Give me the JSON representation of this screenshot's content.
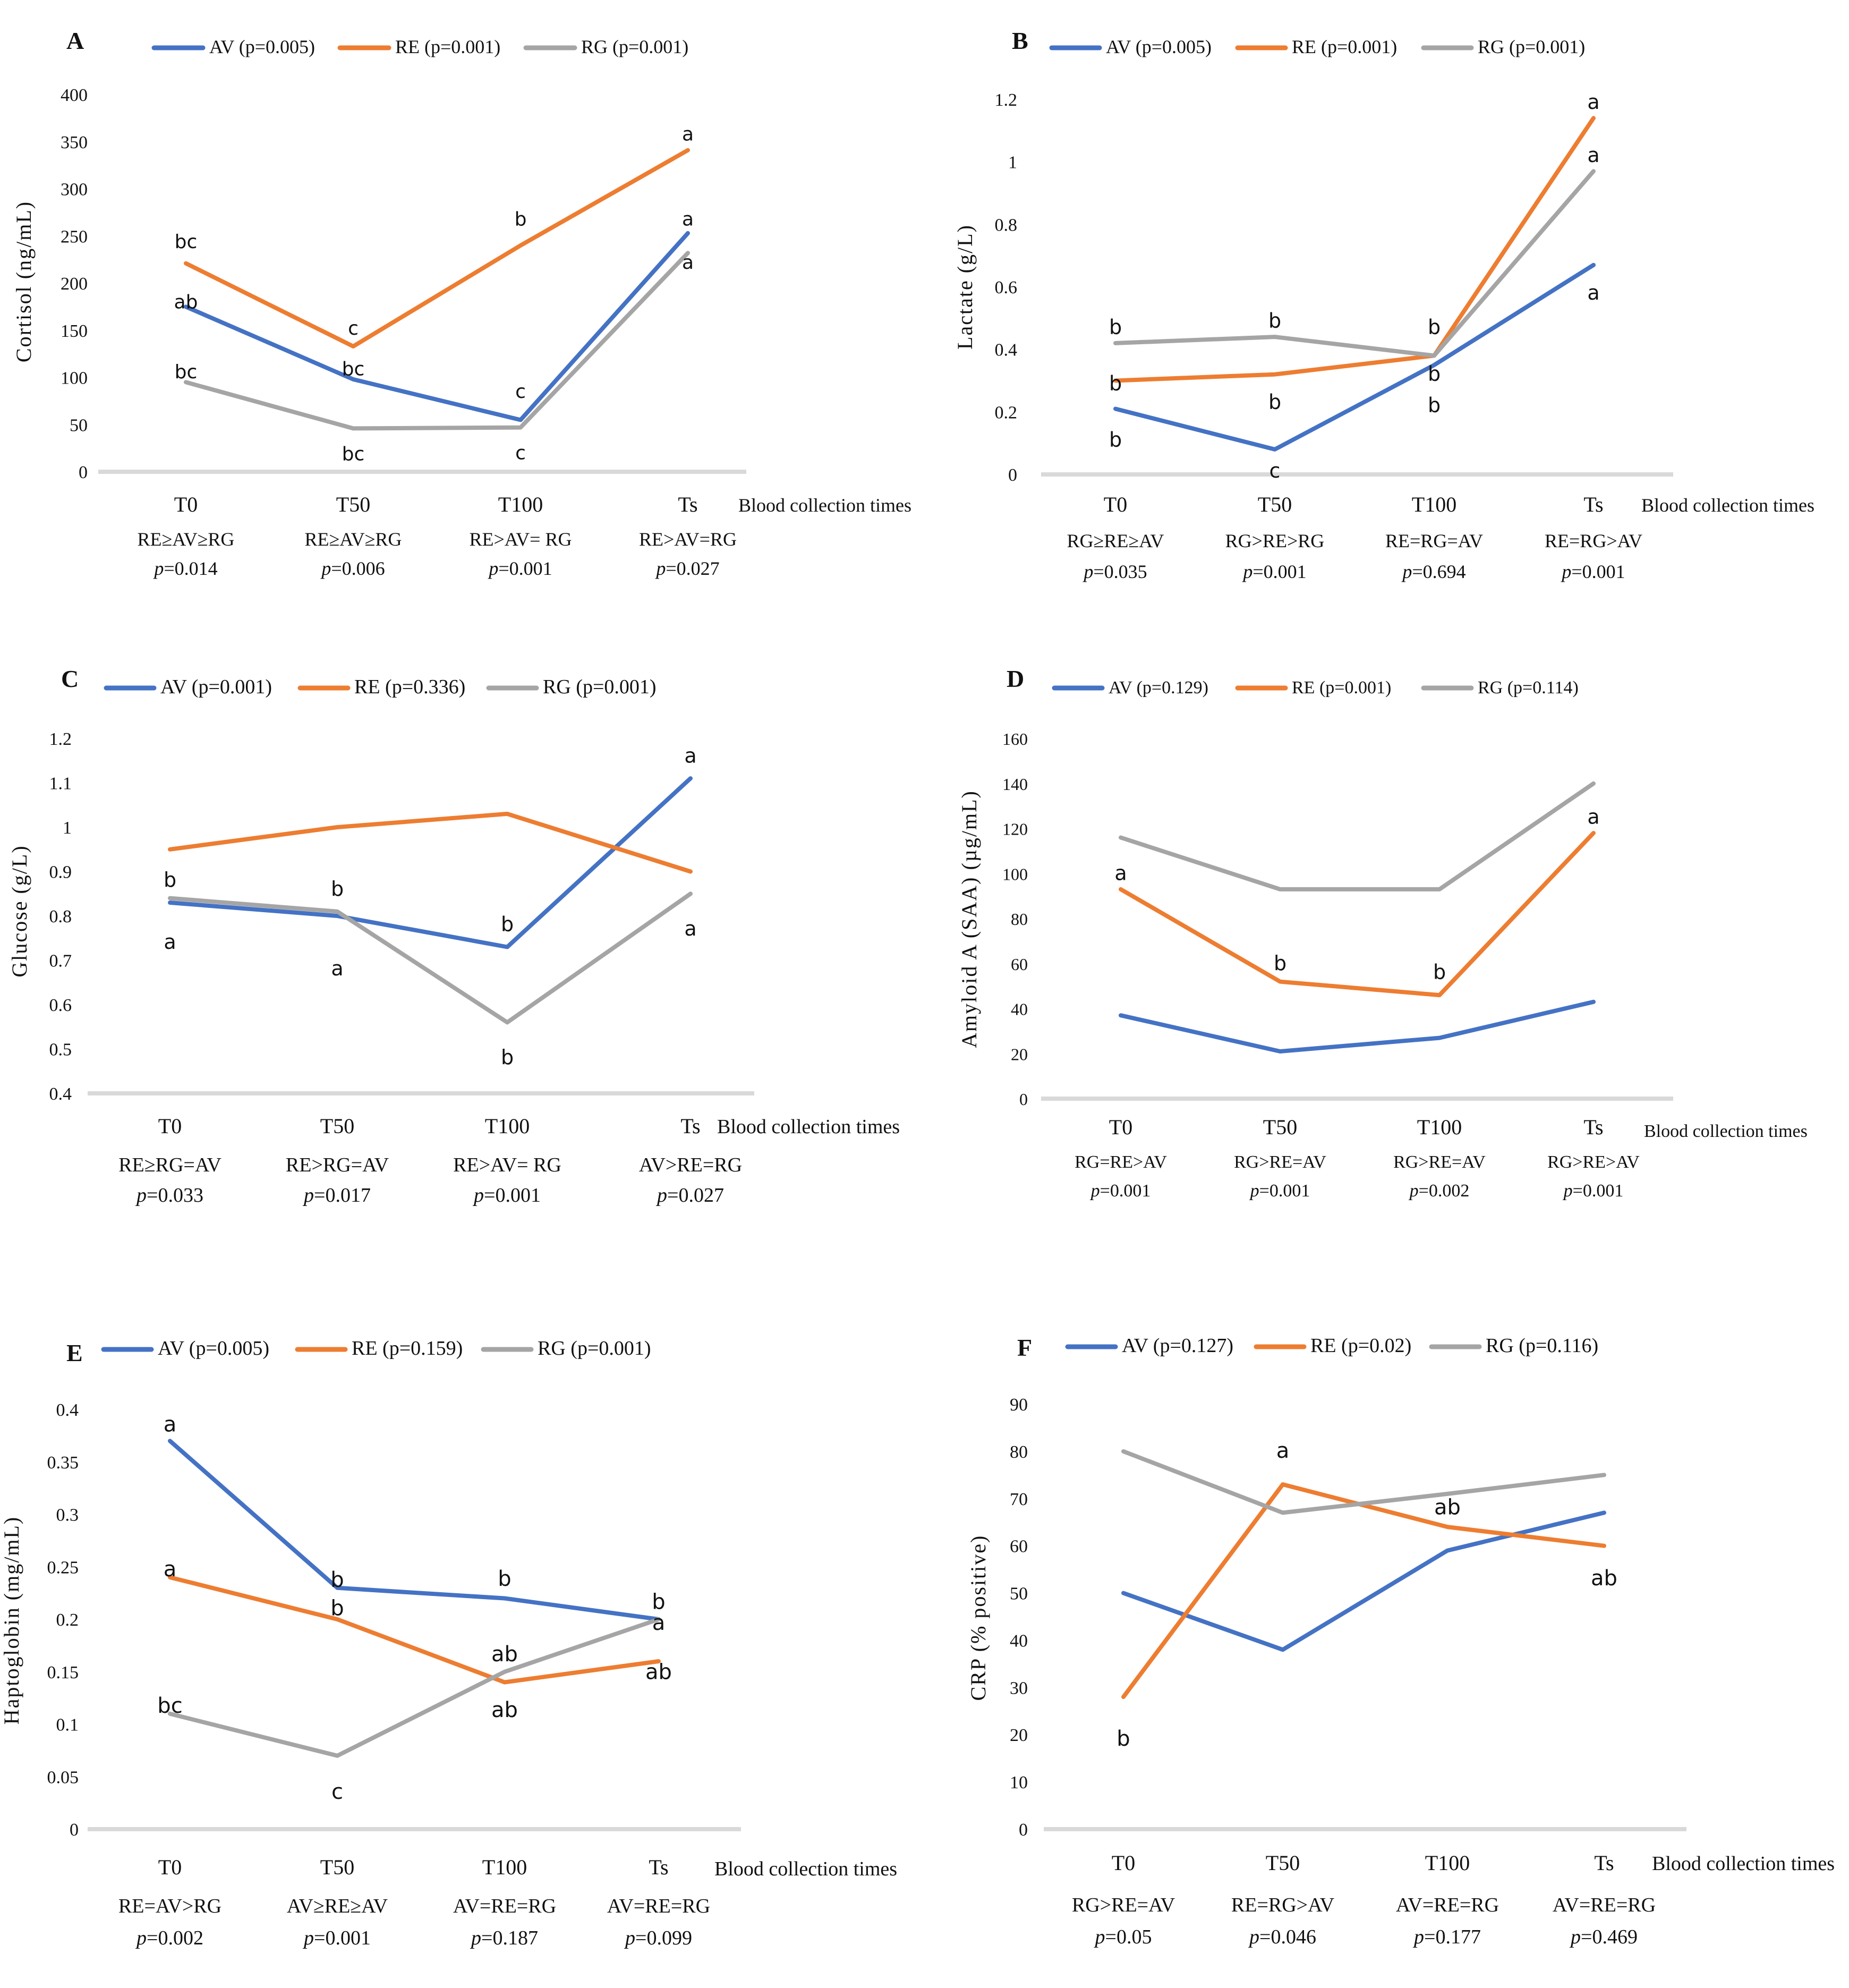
{
  "colors": {
    "AV": "#4472C4",
    "RE": "#ED7D31",
    "RG": "#A5A5A5",
    "axis": "#D9D9D9"
  },
  "chart_data": [
    {
      "panel": "A",
      "type": "line",
      "ylabel": "Cortisol (ng/mL)",
      "xlabel": "Blood collection times",
      "categories": [
        "T0",
        "T50",
        "T100",
        "Ts"
      ],
      "ylim": [
        0,
        400
      ],
      "yticks": [
        "0",
        "50",
        "100",
        "150",
        "200",
        "250",
        "300",
        "350",
        "400"
      ],
      "series": [
        {
          "key": "AV",
          "name": "AV (p=0.005)",
          "values": [
            175,
            98,
            55,
            253
          ]
        },
        {
          "key": "RE",
          "name": "RE (p=0.001)",
          "values": [
            221,
            133,
            240,
            341
          ]
        },
        {
          "key": "RG",
          "name": "RG (p=0.001)",
          "values": [
            95,
            46,
            47,
            232
          ]
        }
      ],
      "annotations": [
        {
          "text": "bc",
          "x": 0,
          "y": 244
        },
        {
          "text": "ab",
          "x": 0,
          "y": 180
        },
        {
          "text": "bc",
          "x": 0,
          "y": 106
        },
        {
          "text": "c",
          "x": 1,
          "y": 152
        },
        {
          "text": "bc",
          "x": 1,
          "y": 109
        },
        {
          "text": "bc",
          "x": 1,
          "y": 19
        },
        {
          "text": "b",
          "x": 2,
          "y": 268
        },
        {
          "text": "c",
          "x": 2,
          "y": 85
        },
        {
          "text": "c",
          "x": 2,
          "y": 20
        },
        {
          "text": "a",
          "x": 3,
          "y": 358
        },
        {
          "text": "a",
          "x": 3,
          "y": 268
        },
        {
          "text": "a",
          "x": 3,
          "y": 222
        }
      ],
      "comparisons": [
        {
          "relation": "RE≥AV≥RG",
          "p": "=0.014"
        },
        {
          "relation": "RE≥AV≥RG",
          "p": "=0.006"
        },
        {
          "relation": "RE>AV= RG",
          "p": "=0.001"
        },
        {
          "relation": "RE>AV=RG",
          "p": "=0.027"
        }
      ]
    },
    {
      "panel": "B",
      "type": "line",
      "ylabel": "Lactate (g/L)",
      "xlabel": "Blood collection times",
      "categories": [
        "T0",
        "T50",
        "T100",
        "Ts"
      ],
      "ylim": [
        0,
        1.2
      ],
      "yticks": [
        "0",
        "0.2",
        "0.4",
        "0.6",
        "0.8",
        "1",
        "1.2"
      ],
      "series": [
        {
          "key": "AV",
          "name": "AV (p=0.005)",
          "values": [
            0.21,
            0.08,
            0.35,
            0.67
          ]
        },
        {
          "key": "RE",
          "name": "RE (p=0.001)",
          "values": [
            0.3,
            0.32,
            0.38,
            1.14
          ]
        },
        {
          "key": "RG",
          "name": "RG (p=0.001)",
          "values": [
            0.42,
            0.44,
            0.38,
            0.97
          ]
        }
      ],
      "annotations": [
        {
          "text": "b",
          "x": 0,
          "y": 0.47
        },
        {
          "text": "b",
          "x": 0,
          "y": 0.29
        },
        {
          "text": "b",
          "x": 0,
          "y": 0.11
        },
        {
          "text": "b",
          "x": 1,
          "y": 0.49
        },
        {
          "text": "b",
          "x": 1,
          "y": 0.23
        },
        {
          "text": "c",
          "x": 1,
          "y": 0.01
        },
        {
          "text": "b",
          "x": 2,
          "y": 0.47
        },
        {
          "text": "b",
          "x": 2,
          "y": 0.32
        },
        {
          "text": "b",
          "x": 2,
          "y": 0.22
        },
        {
          "text": "a",
          "x": 3,
          "y": 1.19
        },
        {
          "text": "a",
          "x": 3,
          "y": 1.02
        },
        {
          "text": "a",
          "x": 3,
          "y": 0.58
        }
      ],
      "comparisons": [
        {
          "relation": "RG≥RE≥AV",
          "p": "=0.035"
        },
        {
          "relation": "RG>RE>RG",
          "p": "=0.001"
        },
        {
          "relation": "RE=RG=AV",
          "p": "=0.694"
        },
        {
          "relation": "RE=RG>AV",
          "p": "=0.001"
        }
      ]
    },
    {
      "panel": "C",
      "type": "line",
      "ylabel": "Glucose (g/L)",
      "xlabel": "Blood collection times",
      "categories": [
        "T0",
        "T50",
        "T100",
        "Ts"
      ],
      "ylim": [
        0.4,
        1.2
      ],
      "yticks": [
        "0.4",
        "0.5",
        "0.6",
        "0.7",
        "0.8",
        "0.9",
        "1",
        "1.1",
        "1.2"
      ],
      "series": [
        {
          "key": "AV",
          "name": "AV (p=0.001)",
          "values": [
            0.83,
            0.8,
            0.73,
            1.11
          ]
        },
        {
          "key": "RE",
          "name": "RE (p=0.336)",
          "values": [
            0.95,
            1.0,
            1.03,
            0.9
          ]
        },
        {
          "key": "RG",
          "name": "RG (p=0.001)",
          "values": [
            0.84,
            0.81,
            0.56,
            0.85
          ]
        }
      ],
      "annotations": [
        {
          "text": "b",
          "x": 0,
          "y": 0.88
        },
        {
          "text": "a",
          "x": 0,
          "y": 0.74
        },
        {
          "text": "b",
          "x": 1,
          "y": 0.86
        },
        {
          "text": "a",
          "x": 1,
          "y": 0.68
        },
        {
          "text": "b",
          "x": 2,
          "y": 0.78
        },
        {
          "text": "b",
          "x": 2,
          "y": 0.48
        },
        {
          "text": "a",
          "x": 3,
          "y": 1.16
        },
        {
          "text": "a",
          "x": 3,
          "y": 0.77
        }
      ],
      "comparisons": [
        {
          "relation": "RE≥RG=AV",
          "p": "=0.033"
        },
        {
          "relation": "RE>RG=AV",
          "p": "=0.017"
        },
        {
          "relation": "RE>AV= RG",
          "p": "=0.001"
        },
        {
          "relation": "AV>RE=RG",
          "p": "=0.027"
        }
      ]
    },
    {
      "panel": "D",
      "type": "line",
      "ylabel": "Amyloid A (SAA) (µg/mL)",
      "xlabel": "Blood collection times",
      "categories": [
        "T0",
        "T50",
        "T100",
        "Ts"
      ],
      "ylim": [
        0,
        160
      ],
      "yticks": [
        "0",
        "20",
        "40",
        "60",
        "80",
        "100",
        "120",
        "140",
        "160"
      ],
      "series": [
        {
          "key": "AV",
          "name": "AV (p=0.129)",
          "values": [
            37,
            21,
            27,
            43
          ]
        },
        {
          "key": "RE",
          "name": "RE (p=0.001)",
          "values": [
            93,
            52,
            46,
            118
          ]
        },
        {
          "key": "RG",
          "name": "RG (p=0.114)",
          "values": [
            116,
            93,
            93,
            140
          ]
        }
      ],
      "annotations": [
        {
          "text": "a",
          "x": 0,
          "y": 100
        },
        {
          "text": "b",
          "x": 1,
          "y": 60
        },
        {
          "text": "b",
          "x": 2,
          "y": 56
        },
        {
          "text": "a",
          "x": 3,
          "y": 125
        }
      ],
      "comparisons": [
        {
          "relation": "RG=RE>AV",
          "p": "=0.001"
        },
        {
          "relation": "RG>RE=AV",
          "p": "=0.001"
        },
        {
          "relation": "RG>RE=AV",
          "p": "=0.002"
        },
        {
          "relation": "RG>RE>AV",
          "p": "=0.001"
        }
      ]
    },
    {
      "panel": "E",
      "type": "line",
      "ylabel": "Haptoglobin (mg/mL)",
      "xlabel": "Blood collection times",
      "categories": [
        "T0",
        "T50",
        "T100",
        "Ts"
      ],
      "ylim": [
        0,
        0.4
      ],
      "yticks": [
        "0",
        "0.05",
        "0.1",
        "0.15",
        "0.2",
        "0.25",
        "0.3",
        "0.35",
        "0.4"
      ],
      "series": [
        {
          "key": "AV",
          "name": "AV (p=0.005)",
          "values": [
            0.37,
            0.23,
            0.22,
            0.2
          ]
        },
        {
          "key": "RE",
          "name": "RE (p=0.159)",
          "values": [
            0.24,
            0.2,
            0.14,
            0.16
          ]
        },
        {
          "key": "RG",
          "name": "RG (p=0.001)",
          "values": [
            0.11,
            0.07,
            0.15,
            0.2
          ]
        }
      ],
      "annotations": [
        {
          "text": "a",
          "x": 0,
          "y": 0.385
        },
        {
          "text": "a",
          "x": 0,
          "y": 0.247
        },
        {
          "text": "bc",
          "x": 0,
          "y": 0.117
        },
        {
          "text": "b",
          "x": 1,
          "y": 0.237
        },
        {
          "text": "b",
          "x": 1,
          "y": 0.21
        },
        {
          "text": "c",
          "x": 1,
          "y": 0.035
        },
        {
          "text": "b",
          "x": 2,
          "y": 0.238
        },
        {
          "text": "ab",
          "x": 2,
          "y": 0.166
        },
        {
          "text": "ab",
          "x": 2,
          "y": 0.113
        },
        {
          "text": "b",
          "x": 3,
          "y": 0.216
        },
        {
          "text": "a",
          "x": 3,
          "y": 0.196
        },
        {
          "text": "ab",
          "x": 3,
          "y": 0.149
        }
      ],
      "comparisons": [
        {
          "relation": "RE=AV>RG",
          "p": "=0.002"
        },
        {
          "relation": "AV≥RE≥AV",
          "p": "=0.001"
        },
        {
          "relation": "AV=RE=RG",
          "p": "=0.187"
        },
        {
          "relation": "AV=RE=RG",
          "p": "=0.099"
        }
      ]
    },
    {
      "panel": "F",
      "type": "line",
      "ylabel": "CRP (% positive)",
      "xlabel": "Blood collection times",
      "categories": [
        "T0",
        "T50",
        "T100",
        "Ts"
      ],
      "ylim": [
        0,
        90
      ],
      "yticks": [
        "0",
        "10",
        "20",
        "30",
        "40",
        "50",
        "60",
        "70",
        "80",
        "90"
      ],
      "series": [
        {
          "key": "AV",
          "name": "AV (p=0.127)",
          "values": [
            50,
            38,
            59,
            67
          ]
        },
        {
          "key": "RE",
          "name": "RE (p=0.02)",
          "values": [
            28,
            73,
            64,
            60
          ]
        },
        {
          "key": "RG",
          "name": "RG (p=0.116)",
          "values": [
            80,
            67,
            71,
            75
          ]
        }
      ],
      "annotations": [
        {
          "text": "b",
          "x": 0,
          "y": 19
        },
        {
          "text": "a",
          "x": 1,
          "y": 80
        },
        {
          "text": "ab",
          "x": 2,
          "y": 68
        },
        {
          "text": "ab",
          "x": 3,
          "y": 53
        }
      ],
      "comparisons": [
        {
          "relation": "RG>RE=AV",
          "p": "=0.05"
        },
        {
          "relation": "RE=RG>AV",
          "p": "=0.046"
        },
        {
          "relation": "AV=RE=RG",
          "p": "=0.177"
        },
        {
          "relation": "AV=RE=RG",
          "p": "=0.469"
        }
      ]
    }
  ]
}
